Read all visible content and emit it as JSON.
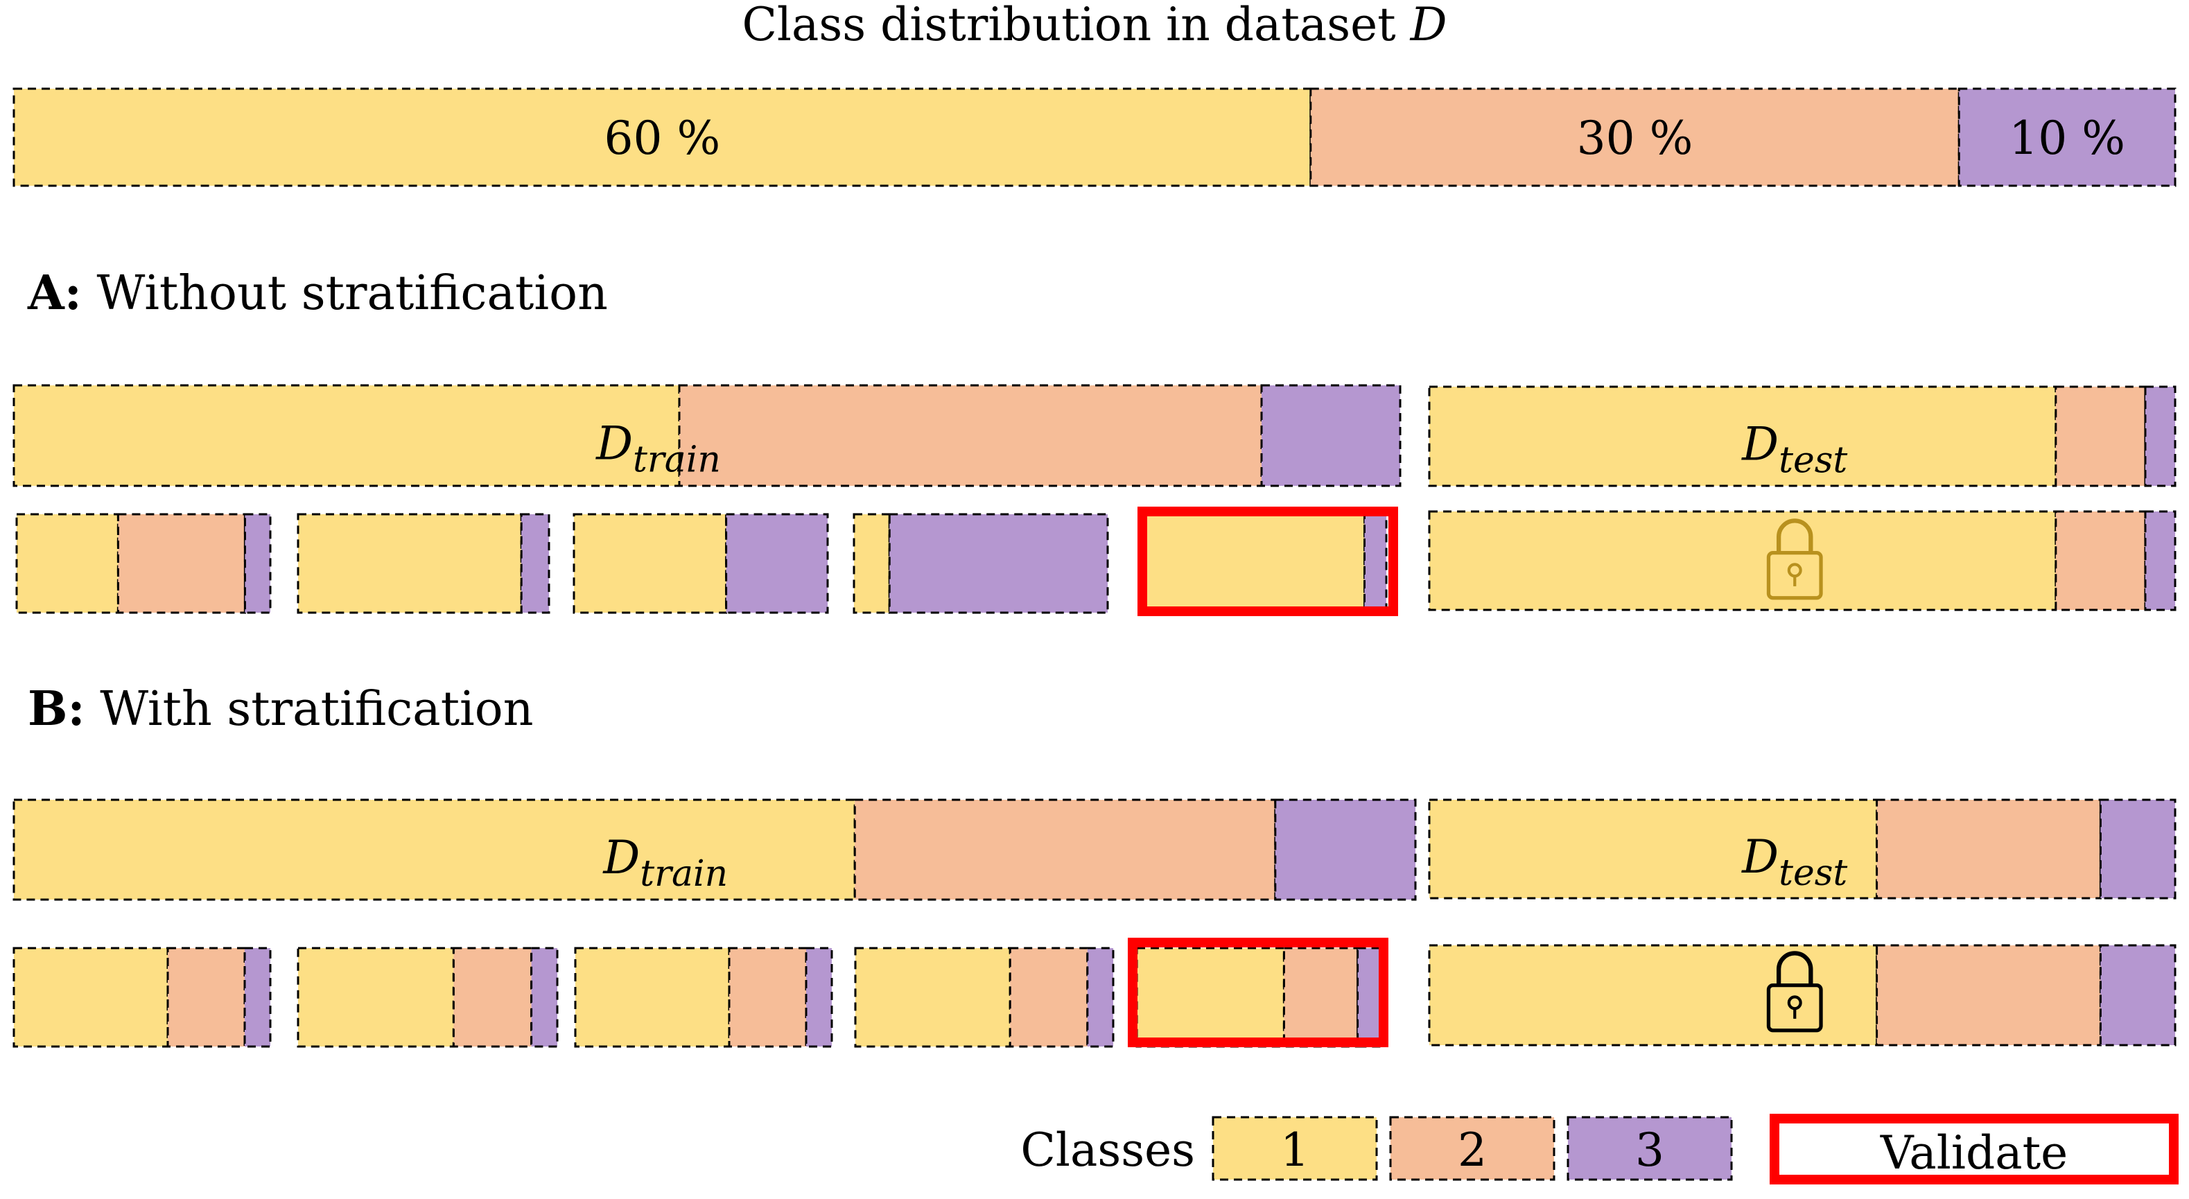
{
  "colors": {
    "class1": "#FDDF85",
    "class2": "#F6BD98",
    "class3": "#B597D0",
    "validate": "#FF0000",
    "lock": "#B8911E",
    "lock_dark": "#000000"
  },
  "title": {
    "prefix": "Class distribution in dataset ",
    "var": "D"
  },
  "dataset_distribution": [
    {
      "class": "1",
      "percent": 60,
      "label": "60 %"
    },
    {
      "class": "2",
      "percent": 30,
      "label": "30 %"
    },
    {
      "class": "3",
      "percent": 10,
      "label": "10 %"
    }
  ],
  "sections": [
    {
      "id": "A",
      "heading_letter": "A:",
      "heading_text": " Without stratification",
      "train_label": {
        "base": "D",
        "sub": "train"
      },
      "test_label": {
        "base": "D",
        "sub": "test"
      },
      "train_composition": [
        0.48,
        0.42,
        0.1
      ],
      "test_composition": [
        0.84,
        0.12,
        0.04
      ],
      "folds": [
        [
          0.4,
          0.5,
          0.1
        ],
        [
          0.89,
          0.0,
          0.11
        ],
        [
          0.6,
          0.0,
          0.4
        ],
        [
          0.14,
          0.0,
          0.86
        ],
        [
          0.91,
          0.0,
          0.09
        ]
      ],
      "validate_fold": 5,
      "lock_icon": "lock-icon"
    },
    {
      "id": "B",
      "heading_letter": "B:",
      "heading_text": " With stratification",
      "train_label": {
        "base": "D",
        "sub": "train"
      },
      "test_label": {
        "base": "D",
        "sub": "test"
      },
      "train_composition": [
        0.6,
        0.3,
        0.1
      ],
      "test_composition": [
        0.6,
        0.3,
        0.1
      ],
      "folds": [
        [
          0.6,
          0.3,
          0.1
        ],
        [
          0.6,
          0.3,
          0.1
        ],
        [
          0.6,
          0.3,
          0.1
        ],
        [
          0.6,
          0.3,
          0.1
        ],
        [
          0.6,
          0.3,
          0.1
        ]
      ],
      "validate_fold": 5,
      "lock_icon": "lock-icon"
    }
  ],
  "legend": {
    "title": "Classes",
    "items": [
      {
        "class": "1",
        "label": "1"
      },
      {
        "class": "2",
        "label": "2"
      },
      {
        "class": "3",
        "label": "3"
      }
    ],
    "validate_label": "Validate"
  }
}
